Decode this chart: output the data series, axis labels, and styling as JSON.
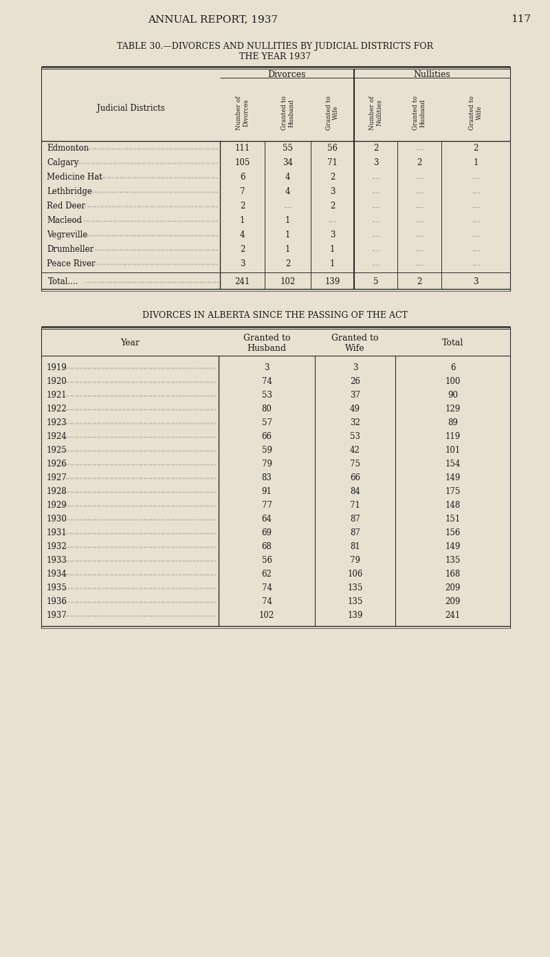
{
  "page_header": "ANNUAL REPORT, 1937",
  "page_number": "117",
  "bg_color": "#e8e0d0",
  "text_color": "#1a1a1a",
  "table1_title_line1": "TABLE 30.—DIVORCES AND NULLITIES BY JUDICIAL DISTRICTS FOR",
  "table1_title_line2": "THE YEAR 1937",
  "table1_col_group1": "Divorces",
  "table1_col_group2": "Nullities",
  "table1_row_header": "Judicial Districts",
  "table1_districts": [
    "Edmonton",
    "Calgary",
    "Medicine Hat",
    "Lethbridge",
    "Red Deer",
    "Macleod",
    "Vegreville",
    "Drumheller",
    "Peace River",
    "Total"
  ],
  "table1_divorces": [
    [
      111,
      55,
      56
    ],
    [
      105,
      34,
      71
    ],
    [
      6,
      4,
      2
    ],
    [
      7,
      4,
      3
    ],
    [
      2,
      null,
      2
    ],
    [
      1,
      1,
      null
    ],
    [
      4,
      1,
      3
    ],
    [
      2,
      1,
      1
    ],
    [
      3,
      2,
      1
    ],
    [
      241,
      102,
      139
    ]
  ],
  "table1_nullities": [
    [
      2,
      null,
      2
    ],
    [
      3,
      2,
      1
    ],
    [
      null,
      null,
      null
    ],
    [
      null,
      null,
      null
    ],
    [
      null,
      null,
      null
    ],
    [
      null,
      null,
      null
    ],
    [
      null,
      null,
      null
    ],
    [
      null,
      null,
      null
    ],
    [
      null,
      null,
      null
    ],
    [
      5,
      2,
      3
    ]
  ],
  "table2_title": "DIVORCES IN ALBERTA SINCE THE PASSING OF THE ACT",
  "table2_year_header": "Year",
  "table2_col_headers": [
    "Granted to\nHusband",
    "Granted to\nWife",
    "Total"
  ],
  "table2_years": [
    1919,
    1920,
    1921,
    1922,
    1923,
    1924,
    1925,
    1926,
    1927,
    1928,
    1929,
    1930,
    1931,
    1932,
    1933,
    1934,
    1935,
    1936,
    1937
  ],
  "table2_granted_husband": [
    3,
    74,
    53,
    80,
    57,
    66,
    59,
    79,
    83,
    91,
    77,
    64,
    69,
    68,
    56,
    62,
    74,
    74,
    102
  ],
  "table2_granted_wife": [
    3,
    26,
    37,
    49,
    32,
    53,
    42,
    75,
    66,
    84,
    71,
    87,
    87,
    81,
    79,
    106,
    135,
    135,
    139
  ],
  "table2_total": [
    6,
    100,
    90,
    129,
    89,
    119,
    101,
    154,
    149,
    175,
    148,
    151,
    156,
    149,
    135,
    168,
    209,
    209,
    241
  ]
}
